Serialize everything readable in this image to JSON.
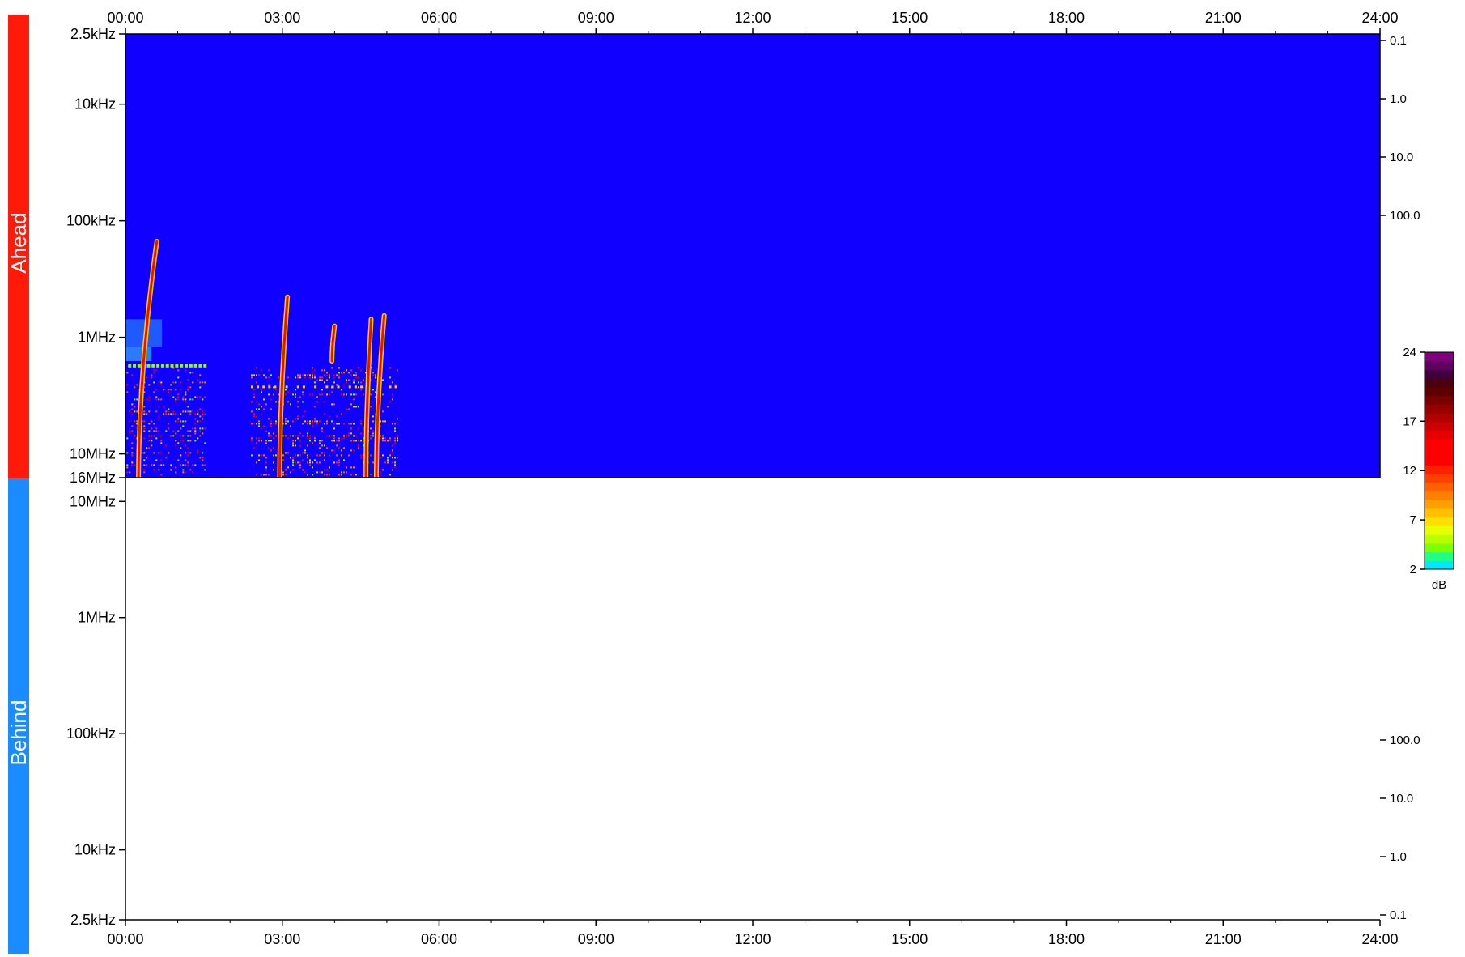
{
  "chart_data": {
    "type": "heatmap",
    "side_labels": {
      "ahead": "Ahead",
      "behind": "Behind"
    },
    "colors": {
      "ahead_bar": "#ff1a0a",
      "behind_bar": "#1a8cff",
      "background": "#0f00ff",
      "no_data": "#ffffff"
    },
    "x_axis": {
      "range_hours": [
        0,
        24
      ],
      "ticks": [
        0,
        3,
        6,
        9,
        12,
        15,
        18,
        21,
        24
      ],
      "tick_labels": [
        "00:00",
        "03:00",
        "06:00",
        "09:00",
        "12:00",
        "15:00",
        "18:00",
        "21:00",
        "24:00"
      ]
    },
    "panels": [
      {
        "name": "Ahead",
        "y_scale": "log",
        "y_range_hz": [
          2500,
          16000000
        ],
        "inverted": true,
        "y_ticks_hz": [
          2500,
          10000,
          100000,
          1000000,
          10000000,
          16000000
        ],
        "y_tick_labels": [
          "2.5kHz",
          "10kHz",
          "100kHz",
          "1MHz",
          "10MHz",
          "16MHz"
        ],
        "right_ticks": [
          0.1,
          1.0,
          10.0,
          100.0
        ],
        "right_tick_labels": [
          "0.1",
          "1.0",
          "10.0",
          "100.0"
        ],
        "data_extent_hours": [
          0,
          5.2
        ],
        "radio_bursts": [
          {
            "start_hours": 0.25,
            "end_hours": 0.6,
            "freq_hz": [
              16000000,
              150000
            ]
          },
          {
            "start_hours": 2.95,
            "end_hours": 3.1,
            "freq_hz": [
              16000000,
              450000
            ]
          },
          {
            "start_hours": 3.95,
            "end_hours": 4.0,
            "freq_hz": [
              1600000,
              800000
            ]
          },
          {
            "start_hours": 4.6,
            "end_hours": 4.7,
            "freq_hz": [
              16000000,
              700000
            ]
          },
          {
            "start_hours": 4.8,
            "end_hours": 4.95,
            "freq_hz": [
              16000000,
              650000
            ]
          }
        ]
      },
      {
        "name": "Behind",
        "y_scale": "log",
        "y_range_hz": [
          16000000,
          2500
        ],
        "y_ticks_hz": [
          10000000,
          1000000,
          100000,
          10000,
          2500
        ],
        "y_tick_labels": [
          "10MHz",
          "1MHz",
          "100kHz",
          "10kHz",
          "2.5kHz"
        ],
        "right_ticks": [
          100.0,
          10.0,
          1.0,
          0.1
        ],
        "right_tick_labels": [
          "100.0",
          "10.0",
          "1.0",
          "0.1"
        ],
        "data_extent_hours": null
      }
    ],
    "colorbar": {
      "unit": "dB",
      "range": [
        2,
        24
      ],
      "ticks": [
        2,
        7,
        12,
        17,
        24
      ],
      "tick_labels": [
        "2",
        "7",
        "12",
        "17",
        "24"
      ]
    }
  }
}
